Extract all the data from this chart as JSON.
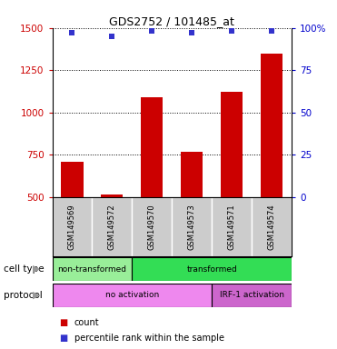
{
  "title": "GDS2752 / 101485_at",
  "samples": [
    "GSM149569",
    "GSM149572",
    "GSM149570",
    "GSM149573",
    "GSM149571",
    "GSM149574"
  ],
  "bar_values": [
    710,
    515,
    1090,
    770,
    1120,
    1350
  ],
  "percentile_values": [
    97,
    95,
    98,
    97,
    98,
    98
  ],
  "bar_color": "#cc0000",
  "dot_color": "#3333cc",
  "ylim_left": [
    500,
    1500
  ],
  "ylim_right": [
    0,
    100
  ],
  "yticks_left": [
    500,
    750,
    1000,
    1250,
    1500
  ],
  "yticks_right": [
    0,
    25,
    50,
    75,
    100
  ],
  "cell_type_groups": [
    {
      "label": "non-transformed",
      "start": 0,
      "end": 2,
      "color": "#99ee99"
    },
    {
      "label": "transformed",
      "start": 2,
      "end": 6,
      "color": "#33dd55"
    }
  ],
  "protocol_groups": [
    {
      "label": "no activation",
      "start": 0,
      "end": 4,
      "color": "#ee88ee"
    },
    {
      "label": "IRF-1 activation",
      "start": 4,
      "end": 6,
      "color": "#cc66cc"
    }
  ],
  "cell_type_label": "cell type",
  "protocol_label": "protocol",
  "legend_count_label": "count",
  "legend_pct_label": "percentile rank within the sample",
  "background_color": "#ffffff",
  "xtick_bg_color": "#cccccc",
  "tick_label_color_left": "#cc0000",
  "tick_label_color_right": "#0000cc"
}
